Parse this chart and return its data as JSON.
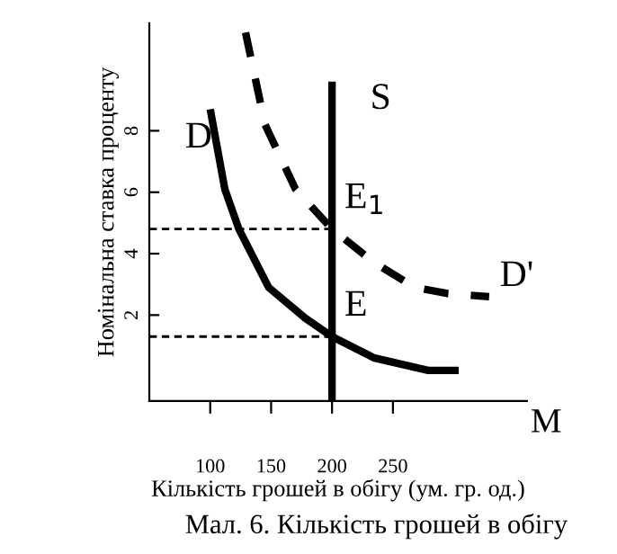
{
  "chart_data": {
    "type": "line",
    "xlabel": "Кількість грошей в обігу (ум. гр. од.)",
    "ylabel": "Номінальна ставка проценту",
    "xlim": [
      50,
      360
    ],
    "ylim": [
      -0.8,
      11.5
    ],
    "xticks": [
      100,
      150,
      200,
      250
    ],
    "yticks": [
      2,
      4,
      6,
      8
    ],
    "grid": false,
    "legend": false,
    "marker": "none",
    "series": [
      {
        "color": "#000000",
        "line_style": "solid",
        "x": [
          100,
          112,
          123.5,
          148,
          178,
          200,
          235,
          279,
          304
        ],
        "values": [
          8.7,
          6.1,
          4.8,
          2.9,
          1.9,
          1.3,
          0.6,
          0.2,
          0.2
        ]
      },
      {
        "color": "#000000",
        "line_style": "dashed",
        "x": [
          129,
          145,
          170,
          200,
          235,
          268,
          295,
          329
        ],
        "values": [
          11.2,
          8.2,
          6.1,
          4.8,
          3.7,
          2.9,
          2.7,
          2.6
        ]
      },
      {
        "color": "#000000",
        "line_style": "solid",
        "x": [
          200,
          200
        ],
        "values": [
          -0.8,
          9.6
        ]
      },
      {
        "color": "#000000",
        "line_style": "dotted",
        "x": [
          50,
          200
        ],
        "values": [
          4.8,
          4.8
        ]
      },
      {
        "color": "#000000",
        "line_style": "dotted",
        "x": [
          50,
          200
        ],
        "values": [
          1.3,
          1.3
        ]
      }
    ],
    "annotations": [
      "D",
      "S",
      {
        "text": "E$_{1}$",
        "x": 200,
        "y": 4.8
      },
      {
        "text": "E",
        "x": 200,
        "y": 1.3
      },
      "D'",
      "M",
      "Мал. 6. Кількість грошей в обігу"
    ]
  }
}
